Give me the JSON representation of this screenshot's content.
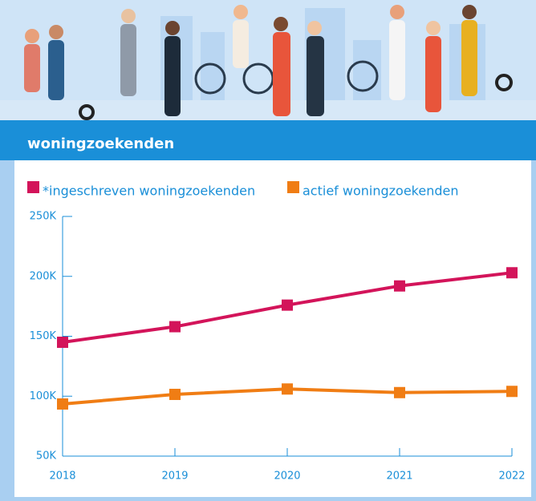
{
  "chart_data": {
    "type": "line",
    "title": "woningzoekenden",
    "categories": [
      "2018",
      "2019",
      "2020",
      "2021",
      "2022"
    ],
    "series": [
      {
        "name": "*ingeschreven woningzoekenden",
        "color": "#d3145a",
        "values": [
          145000,
          158000,
          176000,
          192000,
          203000
        ]
      },
      {
        "name": "actief woningzoekenden",
        "color": "#f07d14",
        "values": [
          93500,
          101500,
          106000,
          103000,
          104000
        ]
      }
    ],
    "ylim": [
      50000,
      250000
    ],
    "yticks": [
      {
        "value": 50000,
        "label": "50K"
      },
      {
        "value": 100000,
        "label": "100K"
      },
      {
        "value": 150000,
        "label": "150K"
      },
      {
        "value": 200000,
        "label": "200K"
      },
      {
        "value": 250000,
        "label": "250K"
      }
    ],
    "grid": false
  }
}
